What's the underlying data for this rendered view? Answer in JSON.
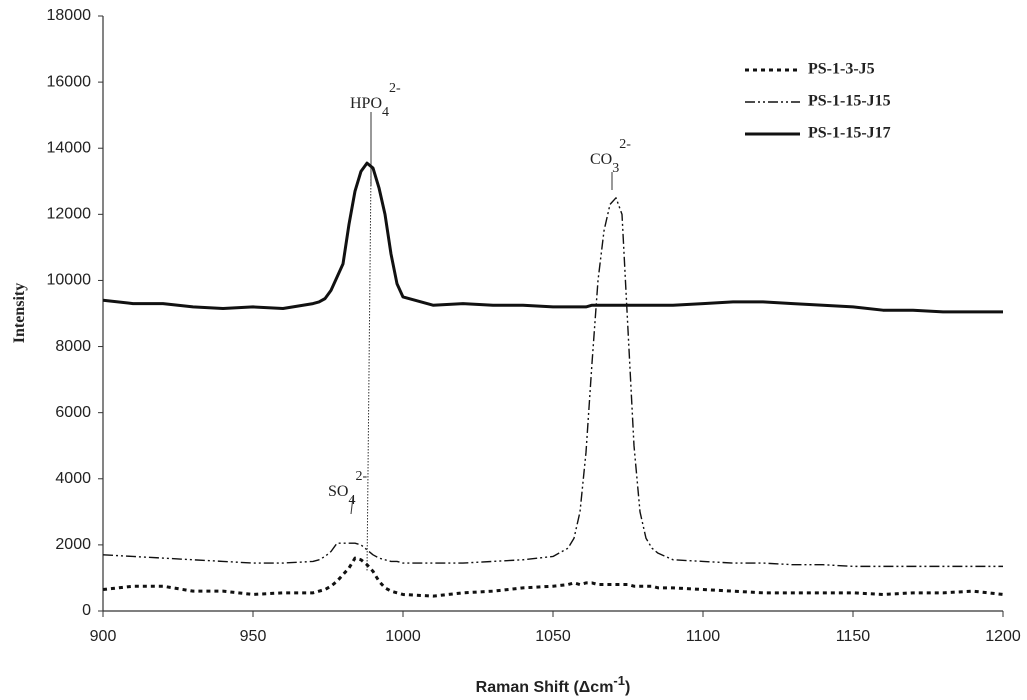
{
  "chart_data": {
    "type": "line",
    "x_label": {
      "text": "Raman Shift (Δcm",
      "sup": "-1",
      "tail": ")"
    },
    "y_label": "Intensity",
    "xlim": [
      900,
      1200
    ],
    "xticks": [
      900,
      950,
      1000,
      1050,
      1100,
      1150,
      1200
    ],
    "ylim": [
      0,
      18000
    ],
    "yticks": [
      0,
      2000,
      4000,
      6000,
      8000,
      10000,
      12000,
      14000,
      16000,
      18000
    ],
    "legend": "upper right",
    "x": [
      900,
      910,
      920,
      930,
      940,
      950,
      960,
      970,
      972,
      974,
      976,
      978,
      980,
      982,
      984,
      986,
      988,
      990,
      992,
      994,
      996,
      998,
      1000,
      1010,
      1020,
      1030,
      1040,
      1050,
      1055,
      1057,
      1059,
      1061,
      1063,
      1065,
      1067,
      1069,
      1071,
      1073,
      1075,
      1077,
      1079,
      1081,
      1083,
      1085,
      1090,
      1100,
      1110,
      1120,
      1130,
      1140,
      1150,
      1160,
      1170,
      1180,
      1190,
      1200
    ],
    "series": [
      {
        "name": "PS-1-3-J5",
        "color": "#111111",
        "style": "dotted",
        "values": [
          650,
          750,
          750,
          600,
          600,
          500,
          550,
          550,
          600,
          650,
          750,
          900,
          1100,
          1300,
          1600,
          1550,
          1400,
          1200,
          900,
          700,
          600,
          550,
          500,
          450,
          550,
          600,
          700,
          750,
          800,
          850,
          800,
          850,
          850,
          800,
          800,
          800,
          800,
          800,
          800,
          750,
          750,
          750,
          750,
          700,
          700,
          650,
          600,
          550,
          550,
          550,
          550,
          500,
          550,
          550,
          600,
          500
        ]
      },
      {
        "name": "PS-1-15-J15",
        "color": "#111111",
        "style": "dash-dot-dot",
        "values": [
          1700,
          1650,
          1600,
          1550,
          1500,
          1450,
          1450,
          1500,
          1550,
          1650,
          1800,
          2050,
          2050,
          2050,
          2050,
          2000,
          1850,
          1700,
          1600,
          1550,
          1500,
          1500,
          1450,
          1450,
          1450,
          1500,
          1550,
          1650,
          1900,
          2200,
          3000,
          4800,
          7500,
          10000,
          11500,
          12300,
          12500,
          12000,
          8500,
          5000,
          3000,
          2200,
          1900,
          1750,
          1550,
          1500,
          1450,
          1450,
          1400,
          1400,
          1350,
          1350,
          1350,
          1350,
          1350,
          1350
        ]
      },
      {
        "name": "PS-1-15-J17",
        "color": "#111111",
        "style": "solid",
        "values": [
          9400,
          9300,
          9300,
          9200,
          9150,
          9200,
          9150,
          9300,
          9350,
          9450,
          9700,
          10100,
          10500,
          11700,
          12700,
          13300,
          13550,
          13400,
          12800,
          12000,
          10800,
          9900,
          9500,
          9250,
          9300,
          9250,
          9250,
          9200,
          9200,
          9200,
          9200,
          9200,
          9250,
          9250,
          9250,
          9250,
          9250,
          9250,
          9250,
          9250,
          9250,
          9250,
          9250,
          9250,
          9250,
          9300,
          9350,
          9350,
          9300,
          9250,
          9200,
          9100,
          9100,
          9050,
          9050,
          9050
        ]
      }
    ],
    "annotations": [
      {
        "text": "HPO",
        "sub": "4",
        "sup": "2-"
      },
      {
        "text": "CO",
        "sub": "3",
        "sup": "2-"
      },
      {
        "text": "SO",
        "sub": "4",
        "sup": "2-"
      }
    ]
  }
}
